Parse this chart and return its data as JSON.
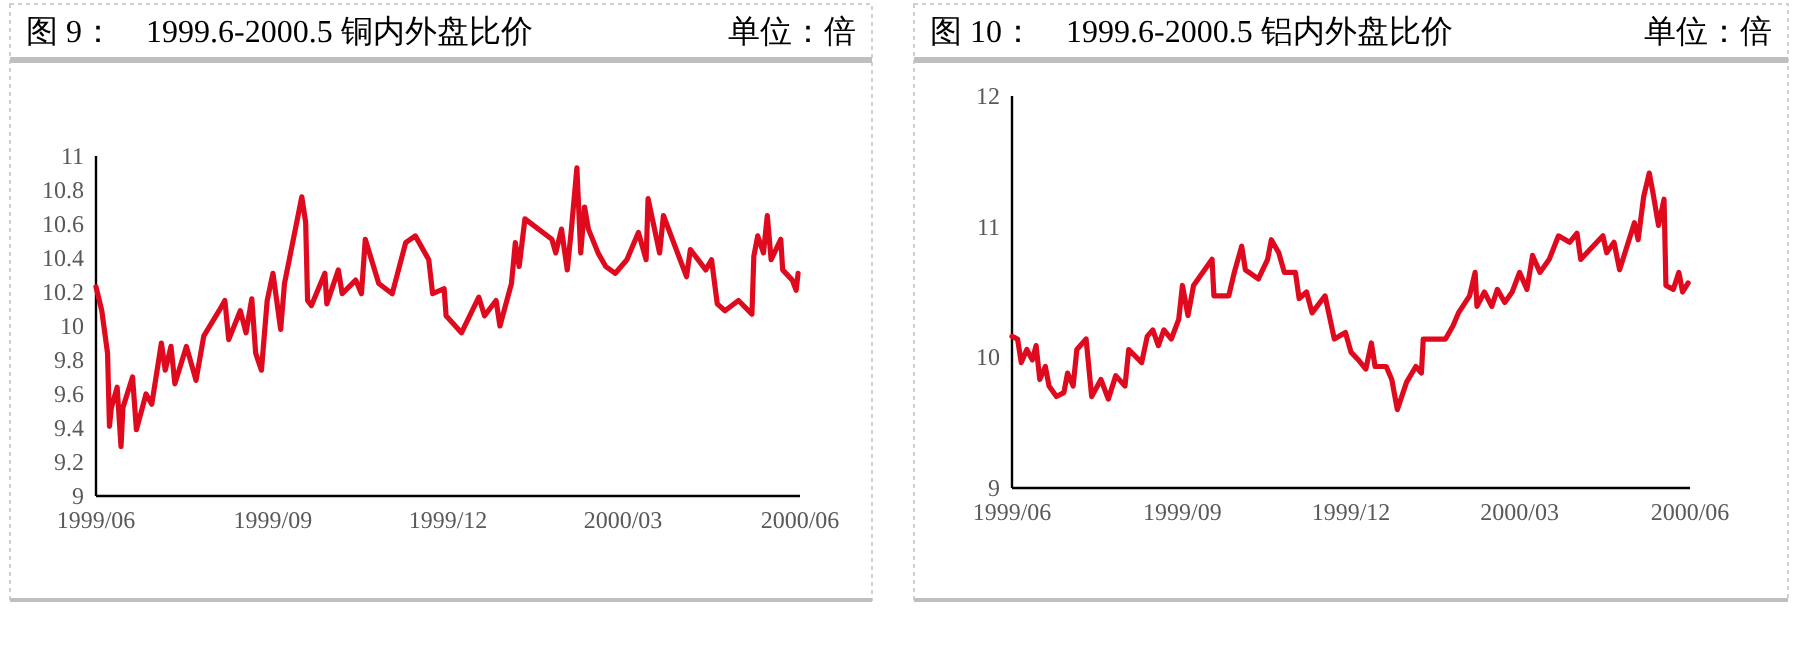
{
  "chart_data": [
    {
      "type": "line",
      "title": "图 9：　1999.6-2000.5 铜内外盘比价",
      "subtitle": "单位：倍",
      "xlim": [
        "1999-06-01",
        "2000-06-01"
      ],
      "xticks": [
        {
          "value": "1999-06-01",
          "label": "1999/06"
        },
        {
          "value": "1999-09-01",
          "label": "1999/09"
        },
        {
          "value": "1999-12-01",
          "label": "1999/12"
        },
        {
          "value": "2000-03-01",
          "label": "2000/03"
        },
        {
          "value": "2000-06-01",
          "label": "2000/06"
        }
      ],
      "ylim": [
        9,
        11
      ],
      "yticks": [
        9,
        9.2,
        9.4,
        9.6,
        9.8,
        10,
        10.2,
        10.4,
        10.6,
        10.8,
        11
      ],
      "grid": false,
      "series": [
        {
          "color": "#e00a1e",
          "x": [
            "1999-06-01",
            "1999-06-04",
            "1999-06-07",
            "1999-06-08",
            "1999-06-09",
            "1999-06-12",
            "1999-06-14",
            "1999-06-15",
            "1999-06-20",
            "1999-06-22",
            "1999-06-27",
            "1999-06-30",
            "1999-07-05",
            "1999-07-07",
            "1999-07-10",
            "1999-07-12",
            "1999-07-18",
            "1999-07-23",
            "1999-07-27",
            "1999-08-04",
            "1999-08-07",
            "1999-08-09",
            "1999-08-15",
            "1999-08-18",
            "1999-08-21",
            "1999-08-23",
            "1999-08-26",
            "1999-08-29",
            "1999-09-01",
            "1999-09-05",
            "1999-09-07",
            "1999-09-16",
            "1999-09-18",
            "1999-09-19",
            "1999-09-21",
            "1999-09-28",
            "1999-09-29",
            "1999-10-05",
            "1999-10-07",
            "1999-10-14",
            "1999-10-17",
            "1999-10-19",
            "1999-10-26",
            "1999-11-02",
            "1999-11-09",
            "1999-11-14",
            "1999-11-21",
            "1999-11-23",
            "1999-11-29",
            "1999-11-30",
            "1999-12-08",
            "1999-12-17",
            "1999-12-20",
            "1999-12-26",
            "1999-12-28",
            "2000-01-03",
            "2000-01-05",
            "2000-01-07",
            "2000-01-10",
            "2000-01-24",
            "2000-01-26",
            "2000-01-29",
            "2000-02-01",
            "2000-02-03",
            "2000-02-06",
            "2000-02-08",
            "2000-02-10",
            "2000-02-12",
            "2000-02-17",
            "2000-02-21",
            "2000-02-26",
            "2000-03-03",
            "2000-03-09",
            "2000-03-13",
            "2000-03-14",
            "2000-03-20",
            "2000-03-22",
            "2000-03-28",
            "2000-04-03",
            "2000-04-05",
            "2000-04-13",
            "2000-04-16",
            "2000-04-19",
            "2000-04-23",
            "2000-04-30",
            "2000-05-07",
            "2000-05-08",
            "2000-05-10",
            "2000-05-13",
            "2000-05-15",
            "2000-05-17",
            "2000-05-22",
            "2000-05-23",
            "2000-05-28",
            "2000-05-30",
            "2000-05-31"
          ],
          "values": [
            10.23,
            10.09,
            9.84,
            9.41,
            9.52,
            9.64,
            9.29,
            9.52,
            9.7,
            9.39,
            9.6,
            9.54,
            9.9,
            9.74,
            9.88,
            9.66,
            9.88,
            9.68,
            9.94,
            10.09,
            10.15,
            9.92,
            10.09,
            9.96,
            10.16,
            9.84,
            9.74,
            10.15,
            10.31,
            9.98,
            10.25,
            10.76,
            10.61,
            10.15,
            10.12,
            10.31,
            10.13,
            10.33,
            10.19,
            10.27,
            10.19,
            10.51,
            10.25,
            10.19,
            10.49,
            10.53,
            10.39,
            10.19,
            10.22,
            10.06,
            9.96,
            10.17,
            10.06,
            10.15,
            10.0,
            10.25,
            10.49,
            10.35,
            10.63,
            10.51,
            10.43,
            10.57,
            10.33,
            10.55,
            10.93,
            10.43,
            10.7,
            10.57,
            10.43,
            10.35,
            10.31,
            10.39,
            10.55,
            10.39,
            10.75,
            10.43,
            10.65,
            10.47,
            10.29,
            10.45,
            10.33,
            10.39,
            10.13,
            10.09,
            10.15,
            10.07,
            10.41,
            10.53,
            10.43,
            10.65,
            10.39,
            10.51,
            10.33,
            10.27,
            10.21,
            10.31
          ]
        }
      ]
    },
    {
      "type": "line",
      "title": "图 10：　1999.6-2000.5 铝内外盘比价",
      "subtitle": "单位：倍",
      "xlim": [
        "1999-06-01",
        "2000-06-01"
      ],
      "xticks": [
        {
          "value": "1999-06-01",
          "label": "1999/06"
        },
        {
          "value": "1999-09-01",
          "label": "1999/09"
        },
        {
          "value": "1999-12-01",
          "label": "1999/12"
        },
        {
          "value": "2000-03-01",
          "label": "2000/03"
        },
        {
          "value": "2000-06-01",
          "label": "2000/06"
        }
      ],
      "ylim": [
        9,
        12
      ],
      "yticks": [
        9,
        10,
        11,
        12
      ],
      "grid": false,
      "series": [
        {
          "color": "#e00a1e",
          "x": [
            "1999-06-01",
            "1999-06-04",
            "1999-06-06",
            "1999-06-09",
            "1999-06-12",
            "1999-06-14",
            "1999-06-16",
            "1999-06-19",
            "1999-06-21",
            "1999-06-25",
            "1999-06-29",
            "1999-07-01",
            "1999-07-04",
            "1999-07-06",
            "1999-07-11",
            "1999-07-14",
            "1999-07-19",
            "1999-07-23",
            "1999-07-27",
            "1999-08-01",
            "1999-08-03",
            "1999-08-10",
            "1999-08-13",
            "1999-08-16",
            "1999-08-19",
            "1999-08-22",
            "1999-08-26",
            "1999-08-30",
            "1999-09-01",
            "1999-09-04",
            "1999-09-07",
            "1999-09-17",
            "1999-09-18",
            "1999-09-26",
            "1999-09-29",
            "1999-10-03",
            "1999-10-05",
            "1999-10-12",
            "1999-10-17",
            "1999-10-19",
            "1999-10-23",
            "1999-10-26",
            "1999-11-01",
            "1999-11-03",
            "1999-11-07",
            "1999-11-10",
            "1999-11-17",
            "1999-11-22",
            "1999-11-28",
            "1999-12-01",
            "1999-12-05",
            "1999-12-09",
            "1999-12-12",
            "1999-12-14",
            "1999-12-20",
            "1999-12-23",
            "1999-12-26",
            "1999-12-31",
            "2000-01-05",
            "2000-01-08",
            "2000-01-09",
            "2000-01-21",
            "2000-01-25",
            "2000-01-28",
            "2000-02-03",
            "2000-02-06",
            "2000-02-07",
            "2000-02-11",
            "2000-02-15",
            "2000-02-18",
            "2000-02-22",
            "2000-02-26",
            "2000-03-01",
            "2000-03-05",
            "2000-03-08",
            "2000-03-12",
            "2000-03-17",
            "2000-03-22",
            "2000-03-28",
            "2000-04-01",
            "2000-04-03",
            "2000-04-15",
            "2000-04-17",
            "2000-04-21",
            "2000-04-24",
            "2000-04-28",
            "2000-05-02",
            "2000-05-04",
            "2000-05-07",
            "2000-05-10",
            "2000-05-12",
            "2000-05-15",
            "2000-05-18",
            "2000-05-19",
            "2000-05-23",
            "2000-05-26",
            "2000-05-28",
            "2000-05-31"
          ],
          "values": [
            10.16,
            10.14,
            9.96,
            10.06,
            9.98,
            10.09,
            9.83,
            9.93,
            9.78,
            9.7,
            9.73,
            9.88,
            9.78,
            10.06,
            10.14,
            9.7,
            9.83,
            9.68,
            9.86,
            9.78,
            10.06,
            9.96,
            10.16,
            10.21,
            10.09,
            10.21,
            10.14,
            10.29,
            10.55,
            10.32,
            10.55,
            10.75,
            10.47,
            10.47,
            10.65,
            10.85,
            10.67,
            10.6,
            10.75,
            10.9,
            10.8,
            10.65,
            10.65,
            10.45,
            10.5,
            10.34,
            10.47,
            10.14,
            10.19,
            10.04,
            9.98,
            9.91,
            10.11,
            9.93,
            9.93,
            9.83,
            9.6,
            9.81,
            9.93,
            9.88,
            10.14,
            10.14,
            10.24,
            10.34,
            10.47,
            10.65,
            10.39,
            10.5,
            10.39,
            10.52,
            10.42,
            10.5,
            10.65,
            10.52,
            10.78,
            10.65,
            10.75,
            10.93,
            10.88,
            10.95,
            10.75,
            10.93,
            10.8,
            10.88,
            10.67,
            10.85,
            11.03,
            10.9,
            11.23,
            11.41,
            11.26,
            11.01,
            11.21,
            10.55,
            10.52,
            10.65,
            10.5,
            10.57
          ]
        }
      ]
    }
  ]
}
